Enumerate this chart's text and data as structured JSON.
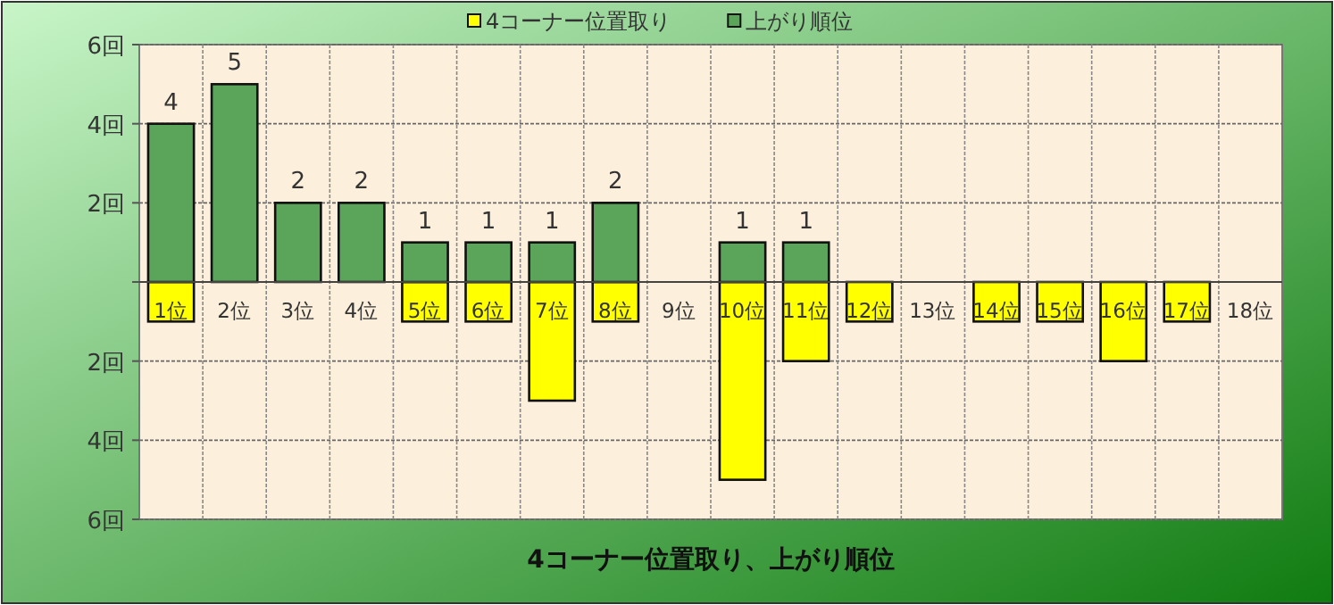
{
  "chart_data": {
    "type": "bar",
    "title": "4コーナー位置取り、上がり順位",
    "categories": [
      "1位",
      "2位",
      "3位",
      "4位",
      "5位",
      "6位",
      "7位",
      "8位",
      "9位",
      "10位",
      "11位",
      "12位",
      "13位",
      "14位",
      "15位",
      "16位",
      "17位",
      "18位"
    ],
    "series": [
      {
        "name": "4コーナー位置取り",
        "color": "#ffff00",
        "values": [
          -1,
          0,
          0,
          0,
          -1,
          -1,
          -3,
          -1,
          0,
          -5,
          -2,
          -1,
          0,
          -1,
          -1,
          -2,
          -1,
          0
        ]
      },
      {
        "name": "上がり順位",
        "color": "#5aa55a",
        "values": [
          4,
          5,
          2,
          2,
          1,
          1,
          1,
          2,
          0,
          1,
          1,
          0,
          0,
          0,
          0,
          0,
          0,
          0
        ],
        "value_labels": [
          "4",
          "5",
          "2",
          "2",
          "1",
          "1",
          "1",
          "2",
          null,
          "1",
          "1",
          null,
          null,
          null,
          null,
          null,
          null,
          null
        ]
      }
    ],
    "ylim": [
      -6,
      6
    ],
    "yticks": [
      {
        "value": -6,
        "label": "6回"
      },
      {
        "value": -4,
        "label": "4回"
      },
      {
        "value": -2,
        "label": "2回"
      },
      {
        "value": 0,
        "label": null
      },
      {
        "value": 2,
        "label": "2回"
      },
      {
        "value": 4,
        "label": "4回"
      },
      {
        "value": 6,
        "label": "6回"
      }
    ],
    "grid": true,
    "legend": "top"
  }
}
